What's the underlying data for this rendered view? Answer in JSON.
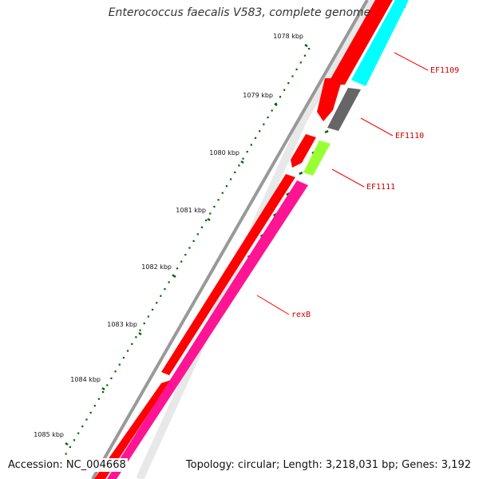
{
  "title": "Enterococcus faecalis V583, complete genome",
  "footer": {
    "accession": "Accession: NC_004668",
    "summary": "Topology: circular; Length: 3,218,031 bp; Genes: 3,192"
  },
  "scale_labels": [
    "1078 kbp",
    "1079 kbp",
    "1080 kbp",
    "1081 kbp",
    "1082 kbp",
    "1083 kbp",
    "1084 kbp",
    "1085 kbp"
  ],
  "genes": [
    {
      "name": "EF1109",
      "color": "#00ffff"
    },
    {
      "name": "EF1110",
      "color": "#666666"
    },
    {
      "name": "EF1111",
      "color": "#99ff33"
    },
    {
      "name": "rexB",
      "color": "#ff1493"
    }
  ],
  "colors": {
    "backbone": "#999999",
    "forward_strand": "#ff0000",
    "tick": "#006400",
    "label_line": "#ff0000",
    "label_text": "#cc0000"
  }
}
